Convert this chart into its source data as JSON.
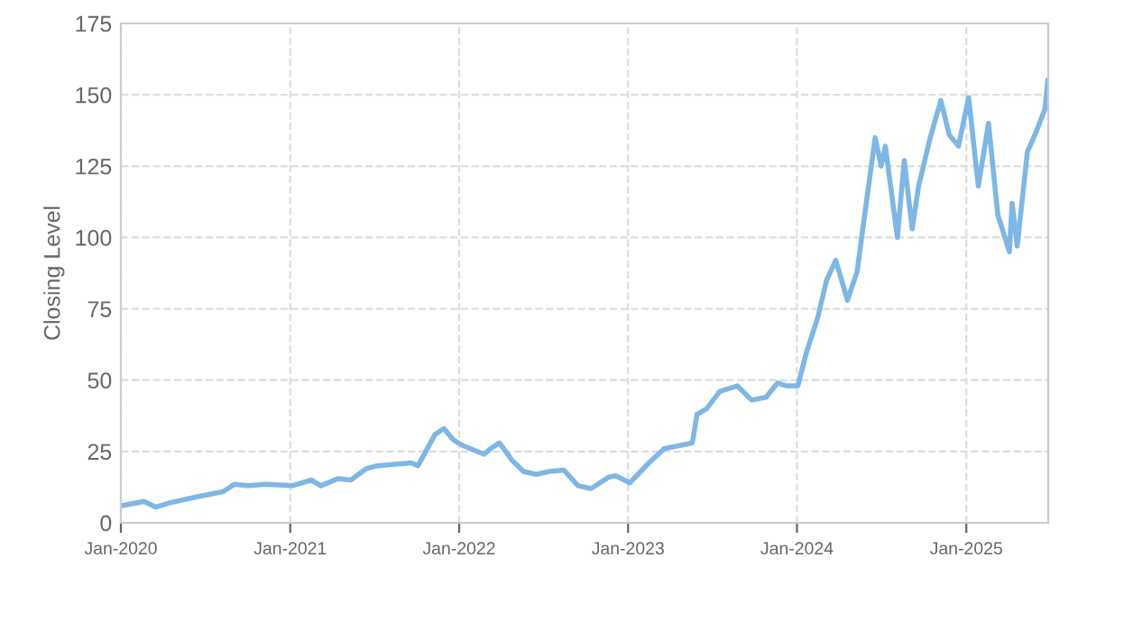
{
  "chart_data": {
    "type": "line",
    "ylabel": "Closing Level",
    "xlim": [
      "2020-01-01",
      "2025-06-27"
    ],
    "xticks": [
      {
        "value": "2020-01-01",
        "label": "Jan-2020"
      },
      {
        "value": "2021-01-01",
        "label": "Jan-2021"
      },
      {
        "value": "2022-01-01",
        "label": "Jan-2022"
      },
      {
        "value": "2023-01-01",
        "label": "Jan-2023"
      },
      {
        "value": "2024-01-01",
        "label": "Jan-2024"
      },
      {
        "value": "2025-01-01",
        "label": "Jan-2025"
      }
    ],
    "ylim": [
      0,
      175
    ],
    "yticks": [
      0,
      25,
      50,
      75,
      100,
      125,
      150,
      175
    ],
    "grid": true,
    "series": [
      {
        "color": "#7eb6e6",
        "x": [
          "2020-01-02",
          "2020-02-20",
          "2020-03-16",
          "2020-04-15",
          "2020-06-10",
          "2020-08-10",
          "2020-09-02",
          "2020-10-01",
          "2020-11-10",
          "2021-01-05",
          "2021-02-16",
          "2021-03-08",
          "2021-04-15",
          "2021-05-12",
          "2021-06-15",
          "2021-07-08",
          "2021-08-15",
          "2021-09-20",
          "2021-10-04",
          "2021-11-10",
          "2021-11-29",
          "2021-12-20",
          "2022-01-10",
          "2022-02-24",
          "2022-03-10",
          "2022-03-29",
          "2022-04-25",
          "2022-05-20",
          "2022-06-16",
          "2022-07-15",
          "2022-08-15",
          "2022-09-15",
          "2022-10-13",
          "2022-11-20",
          "2022-12-05",
          "2023-01-05",
          "2023-02-15",
          "2023-03-20",
          "2023-04-20",
          "2023-05-20",
          "2023-05-30",
          "2023-06-20",
          "2023-07-18",
          "2023-08-25",
          "2023-09-25",
          "2023-10-26",
          "2023-11-20",
          "2023-12-10",
          "2024-01-03",
          "2024-01-22",
          "2024-02-15",
          "2024-03-05",
          "2024-03-25",
          "2024-04-19",
          "2024-05-10",
          "2024-05-24",
          "2024-06-18",
          "2024-07-01",
          "2024-07-10",
          "2024-08-05",
          "2024-08-20",
          "2024-09-06",
          "2024-09-20",
          "2024-10-15",
          "2024-11-07",
          "2024-11-25",
          "2024-12-15",
          "2025-01-06",
          "2025-01-27",
          "2025-02-18",
          "2025-03-10",
          "2025-04-04",
          "2025-04-10",
          "2025-04-21",
          "2025-05-13",
          "2025-06-01",
          "2025-06-20",
          "2025-06-26"
        ],
        "values": [
          6,
          7.5,
          5.5,
          7,
          9,
          11,
          13.5,
          13,
          13.5,
          13,
          15,
          13,
          15.5,
          15,
          19,
          20,
          20.5,
          21,
          20,
          31,
          33,
          29,
          27,
          24,
          26,
          28,
          22,
          18,
          17,
          18,
          18.5,
          13,
          12,
          16,
          16.5,
          14,
          21,
          26,
          27,
          28,
          38,
          40,
          46,
          48,
          43,
          44,
          49,
          48,
          48,
          60,
          72,
          85,
          92,
          78,
          88,
          105,
          135,
          125,
          132,
          100,
          127,
          103,
          118,
          135,
          148,
          136,
          132,
          149,
          118,
          140,
          108,
          95,
          112,
          97,
          130,
          137,
          145,
          155
        ]
      }
    ]
  }
}
